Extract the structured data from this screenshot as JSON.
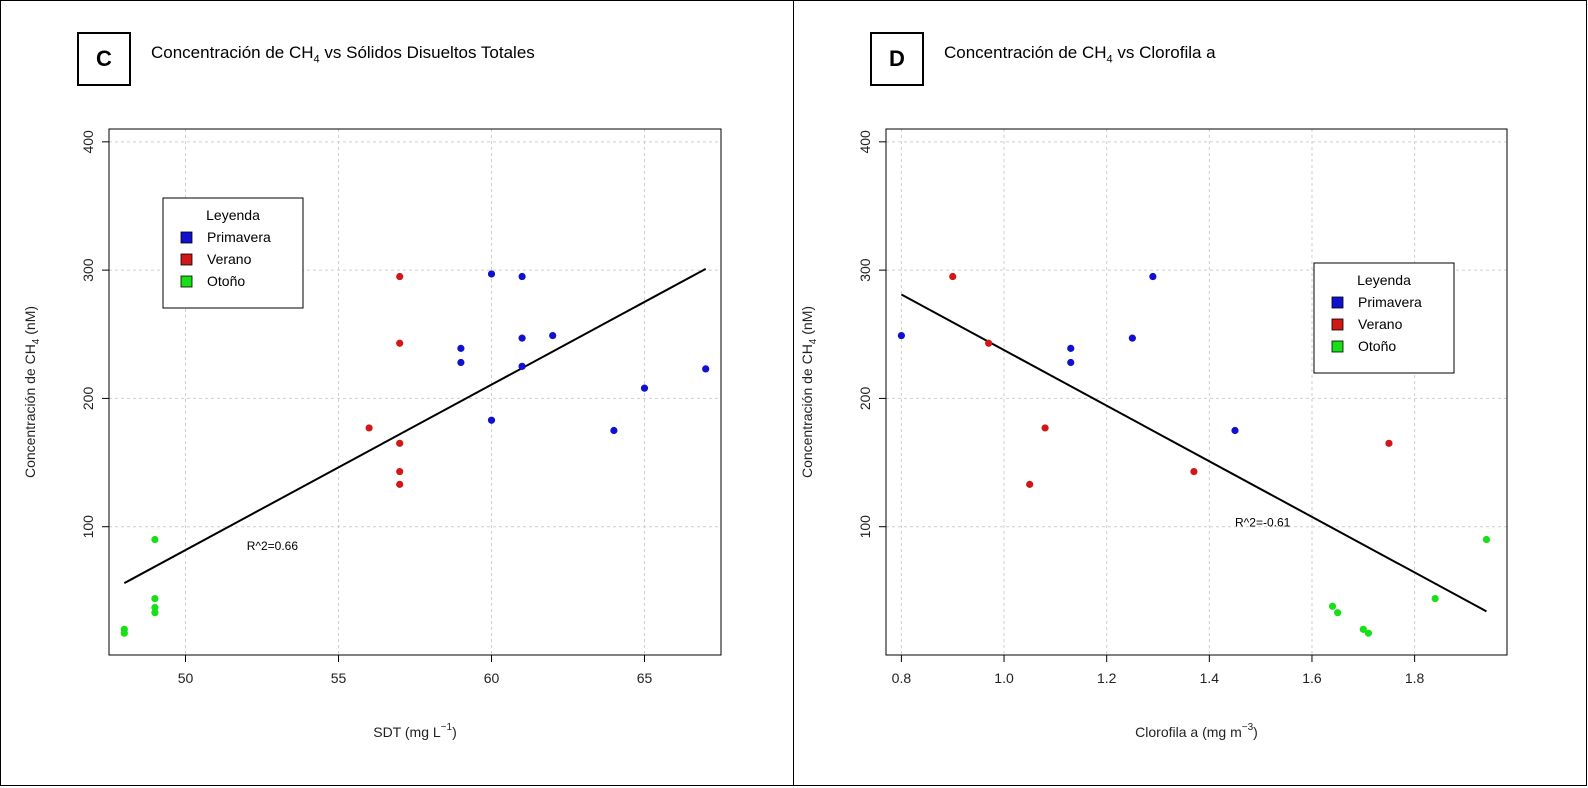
{
  "chart_data": [
    {
      "panel": "C",
      "type": "scatter",
      "title_parts": [
        "Concentración de CH",
        "4",
        " vs Sólidos Disueltos Totales"
      ],
      "xlabel_parts": [
        "SDT (mg L",
        "−1",
        ")"
      ],
      "ylabel_parts": [
        "Concentración de CH",
        "4",
        " (nM)"
      ],
      "xlim": [
        47.5,
        67.5
      ],
      "ylim": [
        0,
        410
      ],
      "xticks": [
        50,
        55,
        60,
        65
      ],
      "yticks": [
        100,
        200,
        300,
        400
      ],
      "grid": true,
      "legend_placement": "upper-left",
      "legend_title": "Leyenda",
      "series": [
        {
          "name": "Primavera",
          "color": "#1010d0",
          "points": [
            [
              59,
              239
            ],
            [
              59,
              228
            ],
            [
              60,
              297
            ],
            [
              60,
              183
            ],
            [
              61,
              295
            ],
            [
              61,
              247
            ],
            [
              61,
              225
            ],
            [
              62,
              249
            ],
            [
              64,
              175
            ],
            [
              65,
              208
            ],
            [
              67,
              223
            ]
          ]
        },
        {
          "name": "Verano",
          "color": "#d01818",
          "points": [
            [
              56,
              177
            ],
            [
              57,
              295
            ],
            [
              57,
              243
            ],
            [
              57,
              165
            ],
            [
              57,
              143
            ],
            [
              57,
              133
            ]
          ]
        },
        {
          "name": "Otoño",
          "color": "#18e018",
          "points": [
            [
              48,
              20
            ],
            [
              48,
              17
            ],
            [
              49,
              90
            ],
            [
              49,
              44
            ],
            [
              49,
              37
            ],
            [
              49,
              33
            ]
          ]
        }
      ],
      "fit_line": [
        [
          48,
          56
        ],
        [
          67,
          301
        ]
      ],
      "annotation": {
        "text": "R^2=0.66",
        "x": 52,
        "y": 82
      }
    },
    {
      "panel": "D",
      "type": "scatter",
      "title_parts": [
        "Concentración de CH",
        "4",
        " vs Clorofila a"
      ],
      "xlabel_parts": [
        "Clorofila a (mg m",
        "−3",
        ")"
      ],
      "ylabel_parts": [
        "Concentración de CH",
        "4",
        " (nM)"
      ],
      "xlim": [
        0.77,
        1.98
      ],
      "ylim": [
        0,
        410
      ],
      "xticks": [
        0.8,
        1.0,
        1.2,
        1.4,
        1.6,
        1.8
      ],
      "xtick_labels": [
        "0.8",
        "1.0",
        "1.2",
        "1.4",
        "1.6",
        "1.8"
      ],
      "yticks": [
        100,
        200,
        300,
        400
      ],
      "grid": true,
      "legend_placement": "right",
      "legend_title": "Leyenda",
      "series": [
        {
          "name": "Primavera",
          "color": "#1010d0",
          "points": [
            [
              0.8,
              249
            ],
            [
              1.13,
              239
            ],
            [
              1.13,
              228
            ],
            [
              1.25,
              247
            ],
            [
              1.29,
              295
            ],
            [
              1.45,
              175
            ]
          ]
        },
        {
          "name": "Verano",
          "color": "#d01818",
          "points": [
            [
              0.9,
              295
            ],
            [
              0.97,
              243
            ],
            [
              1.05,
              133
            ],
            [
              1.08,
              177
            ],
            [
              1.37,
              143
            ],
            [
              1.75,
              165
            ]
          ]
        },
        {
          "name": "Otoño",
          "color": "#18e018",
          "points": [
            [
              1.64,
              38
            ],
            [
              1.65,
              33
            ],
            [
              1.7,
              20
            ],
            [
              1.71,
              17
            ],
            [
              1.84,
              44
            ],
            [
              1.94,
              90
            ]
          ]
        }
      ],
      "fit_line": [
        [
          0.8,
          281
        ],
        [
          1.94,
          34
        ]
      ],
      "annotation": {
        "text": "R^2=-0.61",
        "x": 1.45,
        "y": 100
      }
    }
  ]
}
